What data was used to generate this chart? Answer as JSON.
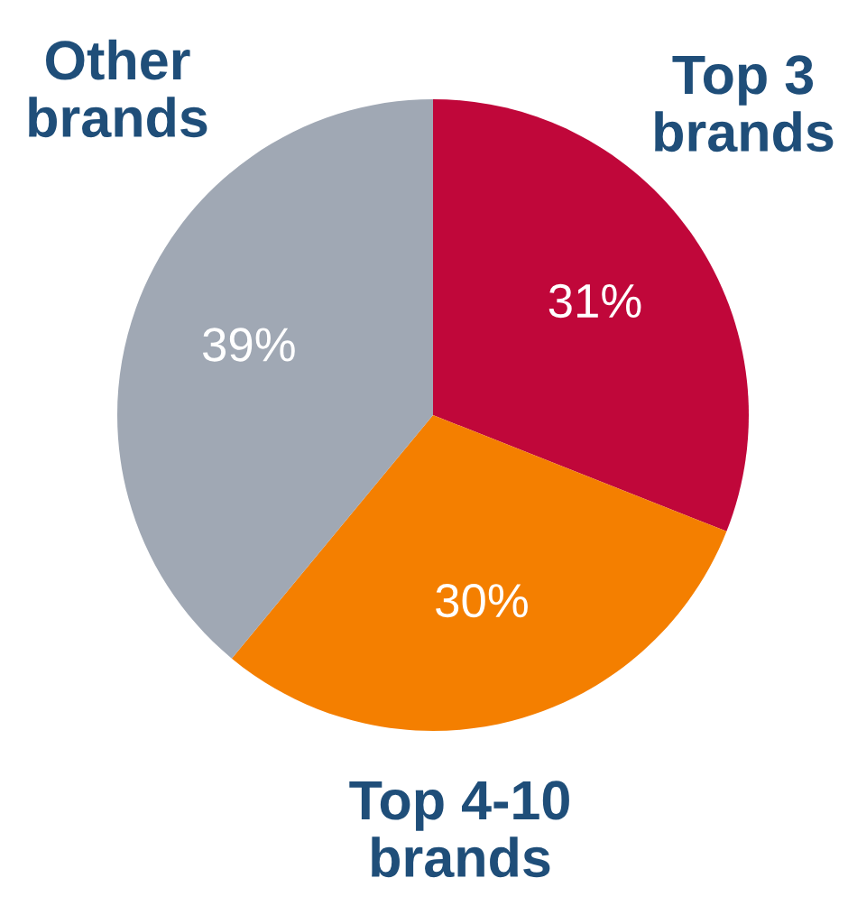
{
  "chart_data": {
    "type": "pie",
    "categories": [
      "Top 3 brands",
      "Top 4-10 brands",
      "Other brands"
    ],
    "values": [
      31,
      30,
      39
    ],
    "colors": [
      "#c0073a",
      "#f47f00",
      "#a0a8b4"
    ],
    "value_labels": [
      "31%",
      "30%",
      "39%"
    ],
    "legend": false
  }
}
